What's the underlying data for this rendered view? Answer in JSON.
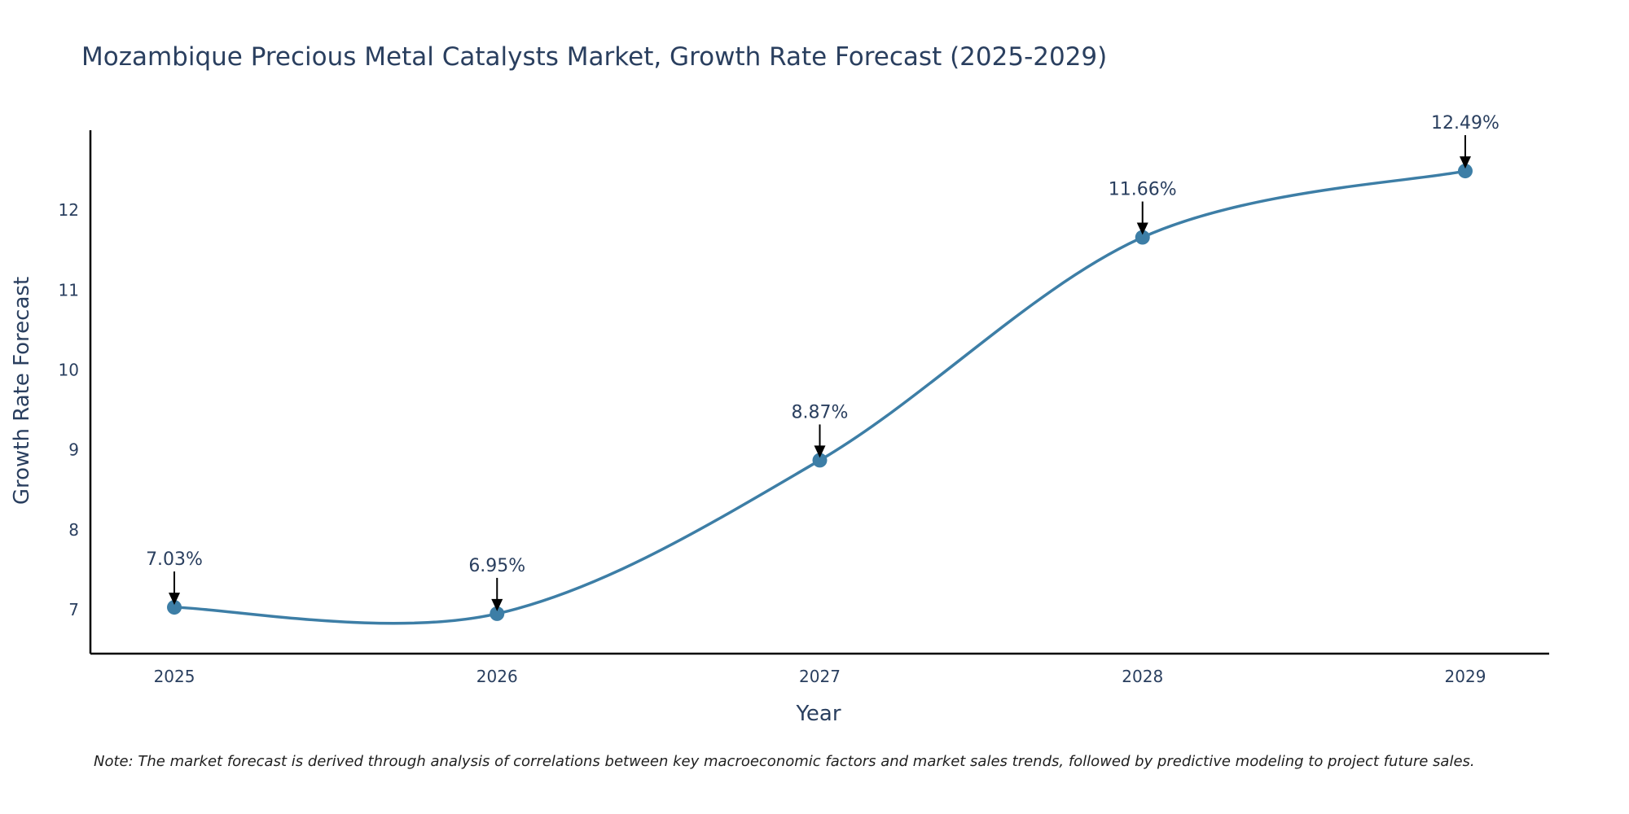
{
  "chart_data": {
    "type": "line",
    "title": "Mozambique Precious Metal Catalysts Market, Growth Rate Forecast (2025-2029)",
    "xlabel": "Year",
    "ylabel": "Growth Rate Forecast",
    "categories": [
      "2025",
      "2026",
      "2027",
      "2028",
      "2029"
    ],
    "series": [
      {
        "name": "Growth Rate Forecast",
        "values": [
          7.03,
          6.95,
          8.87,
          11.66,
          12.49
        ]
      }
    ],
    "data_labels": [
      "7.03%",
      "6.95%",
      "8.87%",
      "11.66%",
      "12.49%"
    ],
    "yticks": [
      7,
      8,
      9,
      10,
      11,
      12
    ],
    "ylim": [
      6.45,
      13.0
    ],
    "xlim": [
      -0.26,
      4.26
    ],
    "line_shape": "spline",
    "line_color": "#3d7ea6",
    "marker_color": "#3d7ea6",
    "grid": false,
    "legend": "none"
  },
  "note": "Note: The market forecast is derived through analysis of correlations between key macroeconomic factors and market sales trends, followed by predictive modeling to project future sales."
}
